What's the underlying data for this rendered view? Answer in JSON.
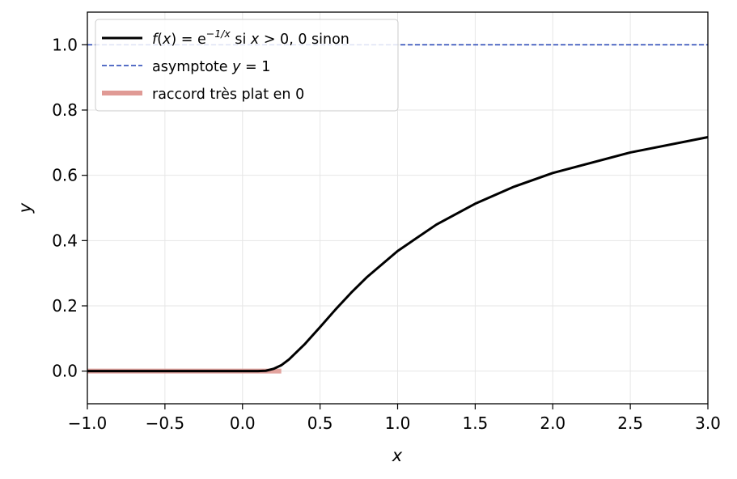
{
  "chart_data": {
    "type": "line",
    "title": "",
    "xlabel": "x",
    "ylabel": "y",
    "xlim": [
      -1.0,
      3.0
    ],
    "ylim": [
      -0.1,
      1.1
    ],
    "x_ticks": [
      "−1.0",
      "−0.5",
      "0.0",
      "0.5",
      "1.0",
      "1.5",
      "2.0",
      "2.5",
      "3.0"
    ],
    "y_ticks": [
      "0.0",
      "0.2",
      "0.4",
      "0.6",
      "0.8",
      "1.0"
    ],
    "x_tick_values": [
      -1.0,
      -0.5,
      0.0,
      0.5,
      1.0,
      1.5,
      2.0,
      2.5,
      3.0
    ],
    "y_tick_values": [
      0.0,
      0.2,
      0.4,
      0.6,
      0.8,
      1.0
    ],
    "grid": true,
    "legend_position": "top-left",
    "series": [
      {
        "name": "f(x) = e^{−1/x} si x > 0, 0 sinon",
        "name_parts": {
          "f": "f",
          "x1": "x",
          "eq": ") = e",
          "exp": "−1/x",
          "si": " si ",
          "x2": "x",
          "rest": " > 0, 0 sinon"
        },
        "style": "solid",
        "color": "#000000",
        "x": [
          -1.0,
          -0.5,
          0.0,
          0.1,
          0.15,
          0.2,
          0.25,
          0.3,
          0.4,
          0.5,
          0.6,
          0.7,
          0.8,
          1.0,
          1.25,
          1.5,
          1.75,
          2.0,
          2.5,
          3.0
        ],
        "y": [
          0.0,
          0.0,
          0.0,
          0.0,
          0.001,
          0.007,
          0.018,
          0.036,
          0.082,
          0.135,
          0.189,
          0.24,
          0.287,
          0.368,
          0.449,
          0.513,
          0.565,
          0.607,
          0.67,
          0.717
        ]
      },
      {
        "name": "asymptote y = 1",
        "name_parts": {
          "a": "asymptote ",
          "y": "y",
          "rest": " = 1"
        },
        "style": "dashed",
        "color": "#1f3fb4",
        "x": [
          -1.0,
          3.0
        ],
        "y": [
          1.0,
          1.0
        ]
      },
      {
        "name": "raccord très plat en 0",
        "style": "thick",
        "color": "#e09a95",
        "x": [
          -1.0,
          0.25
        ],
        "y": [
          0.0,
          0.0
        ]
      }
    ]
  }
}
